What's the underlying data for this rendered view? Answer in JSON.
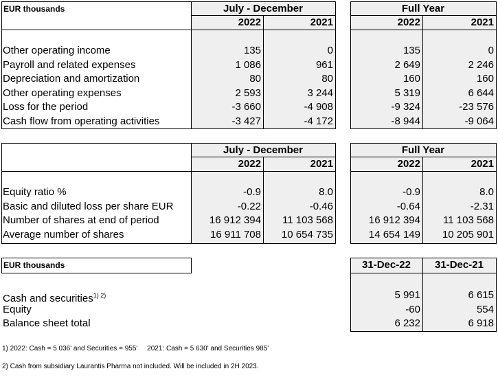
{
  "tables": [
    {
      "header_label": "EUR thousands",
      "groups": [
        {
          "title": "July - December",
          "columns": [
            "2022",
            "2021"
          ]
        },
        {
          "title": "Full Year",
          "columns": [
            "2022",
            "2021"
          ]
        }
      ],
      "rows": [
        {
          "label": "Other operating income",
          "values": [
            "135",
            "0",
            "135",
            "0"
          ]
        },
        {
          "label": "Payroll and related expenses",
          "values": [
            "1 086",
            "961",
            "2 649",
            "2 246"
          ]
        },
        {
          "label": "Depreciation and amortization",
          "values": [
            "80",
            "80",
            "160",
            "160"
          ]
        },
        {
          "label": "Other operating expenses",
          "values": [
            "2 593",
            "3 244",
            "5 319",
            "6 644"
          ]
        },
        {
          "label": "Loss for the period",
          "values": [
            "-3 660",
            "-4 908",
            "-9 324",
            "-23 576"
          ]
        },
        {
          "label": "Cash flow from operating activities",
          "values": [
            "-3 427",
            "-4 172",
            "-8 944",
            "-9 064"
          ]
        }
      ]
    },
    {
      "groups": [
        {
          "title": "July - December",
          "columns": [
            "2022",
            "2021"
          ]
        },
        {
          "title": "Full Year",
          "columns": [
            "2022",
            "2021"
          ]
        }
      ],
      "rows": [
        {
          "label": "Equity ratio %",
          "values": [
            "-0.9",
            "8.0",
            "-0.9",
            "8.0"
          ]
        },
        {
          "label": "Basic and diluted loss per share EUR",
          "values": [
            "-0.22",
            "-0.46",
            "-0.64",
            "-2.31"
          ]
        },
        {
          "label": "Number of shares at end of period",
          "values": [
            "16 912 394",
            "11 103 568",
            "16 912 394",
            "11 103 568"
          ]
        },
        {
          "label": "Average number of shares",
          "values": [
            "16 911 708",
            "10 654 735",
            "14 654 149",
            "10 205 901"
          ]
        }
      ]
    },
    {
      "header_label": "EUR thousands",
      "columns": [
        "31-Dec-22",
        "31-Dec-21"
      ],
      "rows": [
        {
          "label": "Cash and securities",
          "superscript": "1) 2)",
          "values": [
            "5 991",
            "6 615"
          ]
        },
        {
          "label": "Equity",
          "values": [
            "-60",
            "554"
          ]
        },
        {
          "label": "Balance sheet total",
          "values": [
            "6 232",
            "6 918"
          ]
        }
      ]
    }
  ],
  "footnotes": [
    "1) 2022: Cash = 5 036' and Securities = 955'     2021: Cash = 5 630' and Securities 985'",
    "2) Cash from subsidiary Laurantis Pharma not included. Will be included in 2H 2023."
  ]
}
